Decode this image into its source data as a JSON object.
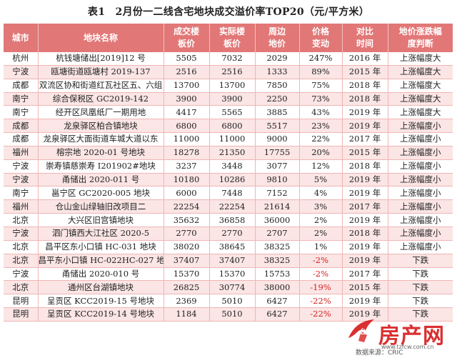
{
  "title": "表1　2月份一二线含宅地块成交溢价率TOP20（元/平方米）",
  "headers": [
    "城市",
    "地块名称",
    "成交楼\n板价",
    "实际楼\n板价",
    "周边\n地价",
    "价格\n变动",
    "对比\n时间",
    "地价涨跌幅\n度判断"
  ],
  "rows": [
    [
      "杭州",
      "杭钱塘储出[2019]12 号",
      "5505",
      "7032",
      "2029",
      "247%",
      "2016 年",
      "上涨幅度大"
    ],
    [
      "宁波",
      "瓯塘街道瓯塘村 2019-137",
      "2516",
      "2516",
      "1333",
      "89%",
      "2015 年",
      "上涨幅度大"
    ],
    [
      "成都",
      "双流区协和街道红瓦社区五、六组",
      "13700",
      "13700",
      "7850",
      "75%",
      "2018 年",
      "上涨幅度大"
    ],
    [
      "南宁",
      "综合保税区 GC2019-142",
      "3900",
      "3900",
      "2250",
      "73%",
      "2018 年",
      "上涨幅度大"
    ],
    [
      "南宁",
      "经开区凤凰纸厂一期用地",
      "4417",
      "5565",
      "3885",
      "43%",
      "2019 年",
      "上涨幅度大"
    ],
    [
      "成都",
      "龙泉驿区柏合镇地块",
      "6800",
      "6800",
      "5517",
      "23%",
      "2019 年",
      "上涨幅度小"
    ],
    [
      "成都",
      "龙泉驿区大面街道车城大道以东",
      "11000",
      "11000",
      "9000",
      "22%",
      "2017 年",
      "上涨幅度小"
    ],
    [
      "福州",
      "榕宗地 2020-01 号地块",
      "18278",
      "21350",
      "17755",
      "20%",
      "2015 年",
      "上涨幅度小"
    ],
    [
      "宁波",
      "崇寿镇慈崇寿 I201902#地块",
      "3237",
      "3448",
      "3077",
      "12%",
      "2018 年",
      "上涨幅度小"
    ],
    [
      "宁波",
      "甬储出 2020-011 号",
      "10180",
      "10286",
      "9810",
      "5%",
      "2019 年",
      "上涨幅度小"
    ],
    [
      "南宁",
      "邕宁区 GC2020-005 地块",
      "6000",
      "7448",
      "7152",
      "4%",
      "2019 年",
      "上涨幅度小"
    ],
    [
      "福州",
      "仓山金山绿轴旧改项目二",
      "22254",
      "22254",
      "21614",
      "3%",
      "2017 年",
      "上涨幅度小"
    ],
    [
      "北京",
      "大兴区旧宫镇地块",
      "35632",
      "36858",
      "36000",
      "2%",
      "2019 年",
      "上涨幅度小"
    ],
    [
      "宁波",
      "泗门镇西大江社区 2020-5",
      "2770",
      "2770",
      "2707",
      "2%",
      "2018 年",
      "上涨幅度小"
    ],
    [
      "北京",
      "昌平区东小口镇 HC-031 地块",
      "38020",
      "38645",
      "38325",
      "1%",
      "2019 年",
      "上涨幅度小"
    ],
    [
      "北京",
      "昌平东小口镇 HC-022HC-027 地块",
      "37407",
      "37407",
      "38325",
      "-2%",
      "2019 年",
      "下跌"
    ],
    [
      "宁波",
      "甬储出 2020-010 号",
      "15370",
      "15370",
      "15753",
      "-2%",
      "2017 年",
      "下跌"
    ],
    [
      "北京",
      "通州区台湖镇地块",
      "26825",
      "30774",
      "38000",
      "-19%",
      "2015 年",
      "下跌"
    ],
    [
      "昆明",
      "呈贡区 KCC2019-15 号地块",
      "2369",
      "5010",
      "6427",
      "-22%",
      "2019 年",
      "下跌"
    ],
    [
      "昆明",
      "呈贡区 KCC2019-14 号地块",
      "1184",
      "5010",
      "6427",
      "-22%",
      "2019 年",
      "下跌"
    ]
  ],
  "watermark": {
    "logo_text": "房产网",
    "url": "www.tzfcw.com.cn",
    "brand": "台州"
  },
  "source_label": "数据来源：CRIC",
  "colors": {
    "header_bg": "#e27777",
    "stripe_bg": "#fbe5e5",
    "negative_text": "#d62020"
  }
}
